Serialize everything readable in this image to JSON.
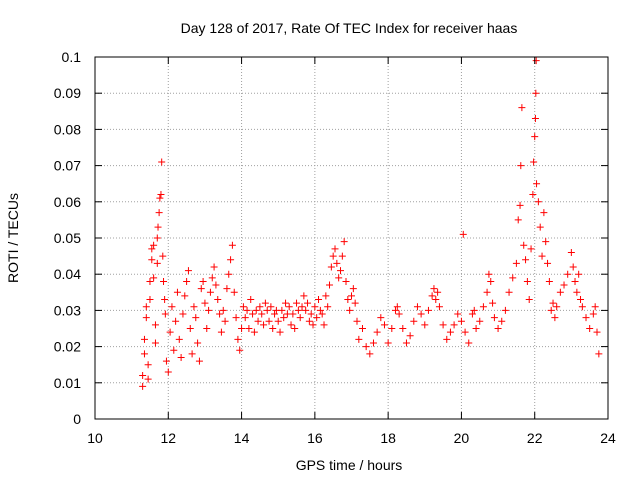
{
  "chart_data": {
    "type": "scatter",
    "title": "Day 128 of 2017, Rate Of TEC Index for receiver haas",
    "xlabel": "GPS time / hours",
    "ylabel": "ROTI / TECUs",
    "xlim": [
      10,
      24
    ],
    "ylim": [
      0,
      0.1
    ],
    "x_ticks": [
      "10",
      "12",
      "14",
      "16",
      "18",
      "20",
      "22",
      "24"
    ],
    "y_ticks": [
      "0",
      "0.01",
      "0.02",
      "0.03",
      "0.04",
      "0.05",
      "0.06",
      "0.07",
      "0.08",
      "0.09",
      "0.1"
    ],
    "grid": true,
    "marker": "+",
    "color": "#ff0000",
    "points": [
      [
        11.3,
        0.009
      ],
      [
        11.3,
        0.012
      ],
      [
        11.35,
        0.018
      ],
      [
        11.35,
        0.022
      ],
      [
        11.4,
        0.028
      ],
      [
        11.4,
        0.031
      ],
      [
        11.45,
        0.015
      ],
      [
        11.45,
        0.011
      ],
      [
        11.5,
        0.033
      ],
      [
        11.5,
        0.038
      ],
      [
        11.55,
        0.044
      ],
      [
        11.55,
        0.047
      ],
      [
        11.6,
        0.048
      ],
      [
        11.6,
        0.039
      ],
      [
        11.65,
        0.026
      ],
      [
        11.65,
        0.021
      ],
      [
        11.7,
        0.043
      ],
      [
        11.7,
        0.05
      ],
      [
        11.72,
        0.053
      ],
      [
        11.75,
        0.057
      ],
      [
        11.77,
        0.061
      ],
      [
        11.8,
        0.062
      ],
      [
        11.82,
        0.071
      ],
      [
        11.85,
        0.045
      ],
      [
        11.87,
        0.038
      ],
      [
        11.9,
        0.033
      ],
      [
        11.92,
        0.029
      ],
      [
        11.95,
        0.016
      ],
      [
        12.0,
        0.013
      ],
      [
        12.05,
        0.024
      ],
      [
        12.1,
        0.031
      ],
      [
        12.15,
        0.019
      ],
      [
        12.2,
        0.027
      ],
      [
        12.25,
        0.035
      ],
      [
        12.3,
        0.022
      ],
      [
        12.35,
        0.017
      ],
      [
        12.4,
        0.029
      ],
      [
        12.45,
        0.034
      ],
      [
        12.5,
        0.038
      ],
      [
        12.55,
        0.041
      ],
      [
        12.6,
        0.025
      ],
      [
        12.65,
        0.018
      ],
      [
        12.7,
        0.031
      ],
      [
        12.75,
        0.028
      ],
      [
        12.8,
        0.021
      ],
      [
        12.85,
        0.016
      ],
      [
        12.9,
        0.036
      ],
      [
        12.95,
        0.038
      ],
      [
        13.0,
        0.032
      ],
      [
        13.05,
        0.025
      ],
      [
        13.1,
        0.03
      ],
      [
        13.15,
        0.035
      ],
      [
        13.2,
        0.039
      ],
      [
        13.25,
        0.042
      ],
      [
        13.3,
        0.037
      ],
      [
        13.35,
        0.033
      ],
      [
        13.4,
        0.029
      ],
      [
        13.45,
        0.024
      ],
      [
        13.5,
        0.03
      ],
      [
        13.55,
        0.027
      ],
      [
        13.6,
        0.036
      ],
      [
        13.65,
        0.04
      ],
      [
        13.7,
        0.044
      ],
      [
        13.75,
        0.048
      ],
      [
        13.8,
        0.035
      ],
      [
        13.85,
        0.028
      ],
      [
        13.9,
        0.022
      ],
      [
        13.95,
        0.019
      ],
      [
        14.0,
        0.025
      ],
      [
        14.05,
        0.031
      ],
      [
        14.1,
        0.028
      ],
      [
        14.15,
        0.03
      ],
      [
        14.2,
        0.025
      ],
      [
        14.25,
        0.033
      ],
      [
        14.3,
        0.029
      ],
      [
        14.35,
        0.024
      ],
      [
        14.4,
        0.03
      ],
      [
        14.45,
        0.027
      ],
      [
        14.5,
        0.031
      ],
      [
        14.55,
        0.029
      ],
      [
        14.6,
        0.026
      ],
      [
        14.65,
        0.032
      ],
      [
        14.7,
        0.03
      ],
      [
        14.75,
        0.027
      ],
      [
        14.8,
        0.031
      ],
      [
        14.85,
        0.025
      ],
      [
        14.9,
        0.029
      ],
      [
        14.95,
        0.03
      ],
      [
        15.0,
        0.027
      ],
      [
        15.05,
        0.024
      ],
      [
        15.1,
        0.03
      ],
      [
        15.15,
        0.028
      ],
      [
        15.2,
        0.032
      ],
      [
        15.25,
        0.029
      ],
      [
        15.3,
        0.031
      ],
      [
        15.35,
        0.026
      ],
      [
        15.4,
        0.029
      ],
      [
        15.45,
        0.025
      ],
      [
        15.5,
        0.032
      ],
      [
        15.55,
        0.03
      ],
      [
        15.6,
        0.028
      ],
      [
        15.65,
        0.031
      ],
      [
        15.7,
        0.034
      ],
      [
        15.75,
        0.03
      ],
      [
        15.8,
        0.032
      ],
      [
        15.85,
        0.027
      ],
      [
        15.9,
        0.029
      ],
      [
        15.95,
        0.026
      ],
      [
        16.0,
        0.031
      ],
      [
        16.05,
        0.028
      ],
      [
        16.1,
        0.033
      ],
      [
        16.15,
        0.03
      ],
      [
        16.2,
        0.029
      ],
      [
        16.25,
        0.026
      ],
      [
        16.3,
        0.034
      ],
      [
        16.35,
        0.031
      ],
      [
        16.4,
        0.037
      ],
      [
        16.45,
        0.042
      ],
      [
        16.5,
        0.045
      ],
      [
        16.55,
        0.047
      ],
      [
        16.6,
        0.043
      ],
      [
        16.65,
        0.039
      ],
      [
        16.7,
        0.041
      ],
      [
        16.75,
        0.045
      ],
      [
        16.8,
        0.049
      ],
      [
        16.85,
        0.038
      ],
      [
        16.9,
        0.033
      ],
      [
        16.95,
        0.03
      ],
      [
        17.0,
        0.034
      ],
      [
        17.05,
        0.036
      ],
      [
        17.1,
        0.032
      ],
      [
        17.15,
        0.027
      ],
      [
        17.2,
        0.022
      ],
      [
        17.3,
        0.025
      ],
      [
        17.4,
        0.02
      ],
      [
        17.5,
        0.018
      ],
      [
        17.6,
        0.021
      ],
      [
        17.7,
        0.024
      ],
      [
        17.8,
        0.028
      ],
      [
        17.9,
        0.026
      ],
      [
        18.0,
        0.021
      ],
      [
        18.1,
        0.025
      ],
      [
        18.2,
        0.03
      ],
      [
        18.25,
        0.031
      ],
      [
        18.3,
        0.029
      ],
      [
        18.4,
        0.025
      ],
      [
        18.5,
        0.021
      ],
      [
        18.6,
        0.023
      ],
      [
        18.7,
        0.027
      ],
      [
        18.8,
        0.031
      ],
      [
        18.9,
        0.029
      ],
      [
        19.0,
        0.026
      ],
      [
        19.1,
        0.03
      ],
      [
        19.2,
        0.034
      ],
      [
        19.25,
        0.036
      ],
      [
        19.3,
        0.033
      ],
      [
        19.35,
        0.035
      ],
      [
        19.4,
        0.031
      ],
      [
        19.5,
        0.026
      ],
      [
        19.6,
        0.022
      ],
      [
        19.7,
        0.024
      ],
      [
        19.8,
        0.026
      ],
      [
        19.9,
        0.029
      ],
      [
        20.0,
        0.027
      ],
      [
        20.05,
        0.051
      ],
      [
        20.1,
        0.024
      ],
      [
        20.2,
        0.021
      ],
      [
        20.3,
        0.029
      ],
      [
        20.35,
        0.03
      ],
      [
        20.4,
        0.025
      ],
      [
        20.5,
        0.027
      ],
      [
        20.6,
        0.031
      ],
      [
        20.7,
        0.035
      ],
      [
        20.75,
        0.04
      ],
      [
        20.8,
        0.038
      ],
      [
        20.85,
        0.032
      ],
      [
        20.9,
        0.028
      ],
      [
        21.0,
        0.025
      ],
      [
        21.1,
        0.027
      ],
      [
        21.2,
        0.03
      ],
      [
        21.3,
        0.035
      ],
      [
        21.4,
        0.039
      ],
      [
        21.5,
        0.043
      ],
      [
        21.55,
        0.055
      ],
      [
        21.6,
        0.059
      ],
      [
        21.62,
        0.07
      ],
      [
        21.65,
        0.086
      ],
      [
        21.7,
        0.048
      ],
      [
        21.75,
        0.044
      ],
      [
        21.8,
        0.038
      ],
      [
        21.85,
        0.033
      ],
      [
        21.9,
        0.047
      ],
      [
        21.95,
        0.062
      ],
      [
        21.97,
        0.071
      ],
      [
        22.0,
        0.078
      ],
      [
        22.02,
        0.083
      ],
      [
        22.03,
        0.09
      ],
      [
        22.04,
        0.099
      ],
      [
        22.05,
        0.065
      ],
      [
        22.1,
        0.06
      ],
      [
        22.15,
        0.053
      ],
      [
        22.2,
        0.045
      ],
      [
        22.25,
        0.057
      ],
      [
        22.3,
        0.049
      ],
      [
        22.35,
        0.043
      ],
      [
        22.4,
        0.038
      ],
      [
        22.45,
        0.03
      ],
      [
        22.5,
        0.032
      ],
      [
        22.55,
        0.028
      ],
      [
        22.6,
        0.031
      ],
      [
        22.7,
        0.035
      ],
      [
        22.8,
        0.037
      ],
      [
        22.9,
        0.04
      ],
      [
        23.0,
        0.046
      ],
      [
        23.05,
        0.042
      ],
      [
        23.1,
        0.038
      ],
      [
        23.15,
        0.035
      ],
      [
        23.2,
        0.04
      ],
      [
        23.25,
        0.033
      ],
      [
        23.3,
        0.031
      ],
      [
        23.4,
        0.028
      ],
      [
        23.5,
        0.025
      ],
      [
        23.6,
        0.029
      ],
      [
        23.65,
        0.031
      ],
      [
        23.7,
        0.024
      ],
      [
        23.75,
        0.018
      ]
    ]
  }
}
